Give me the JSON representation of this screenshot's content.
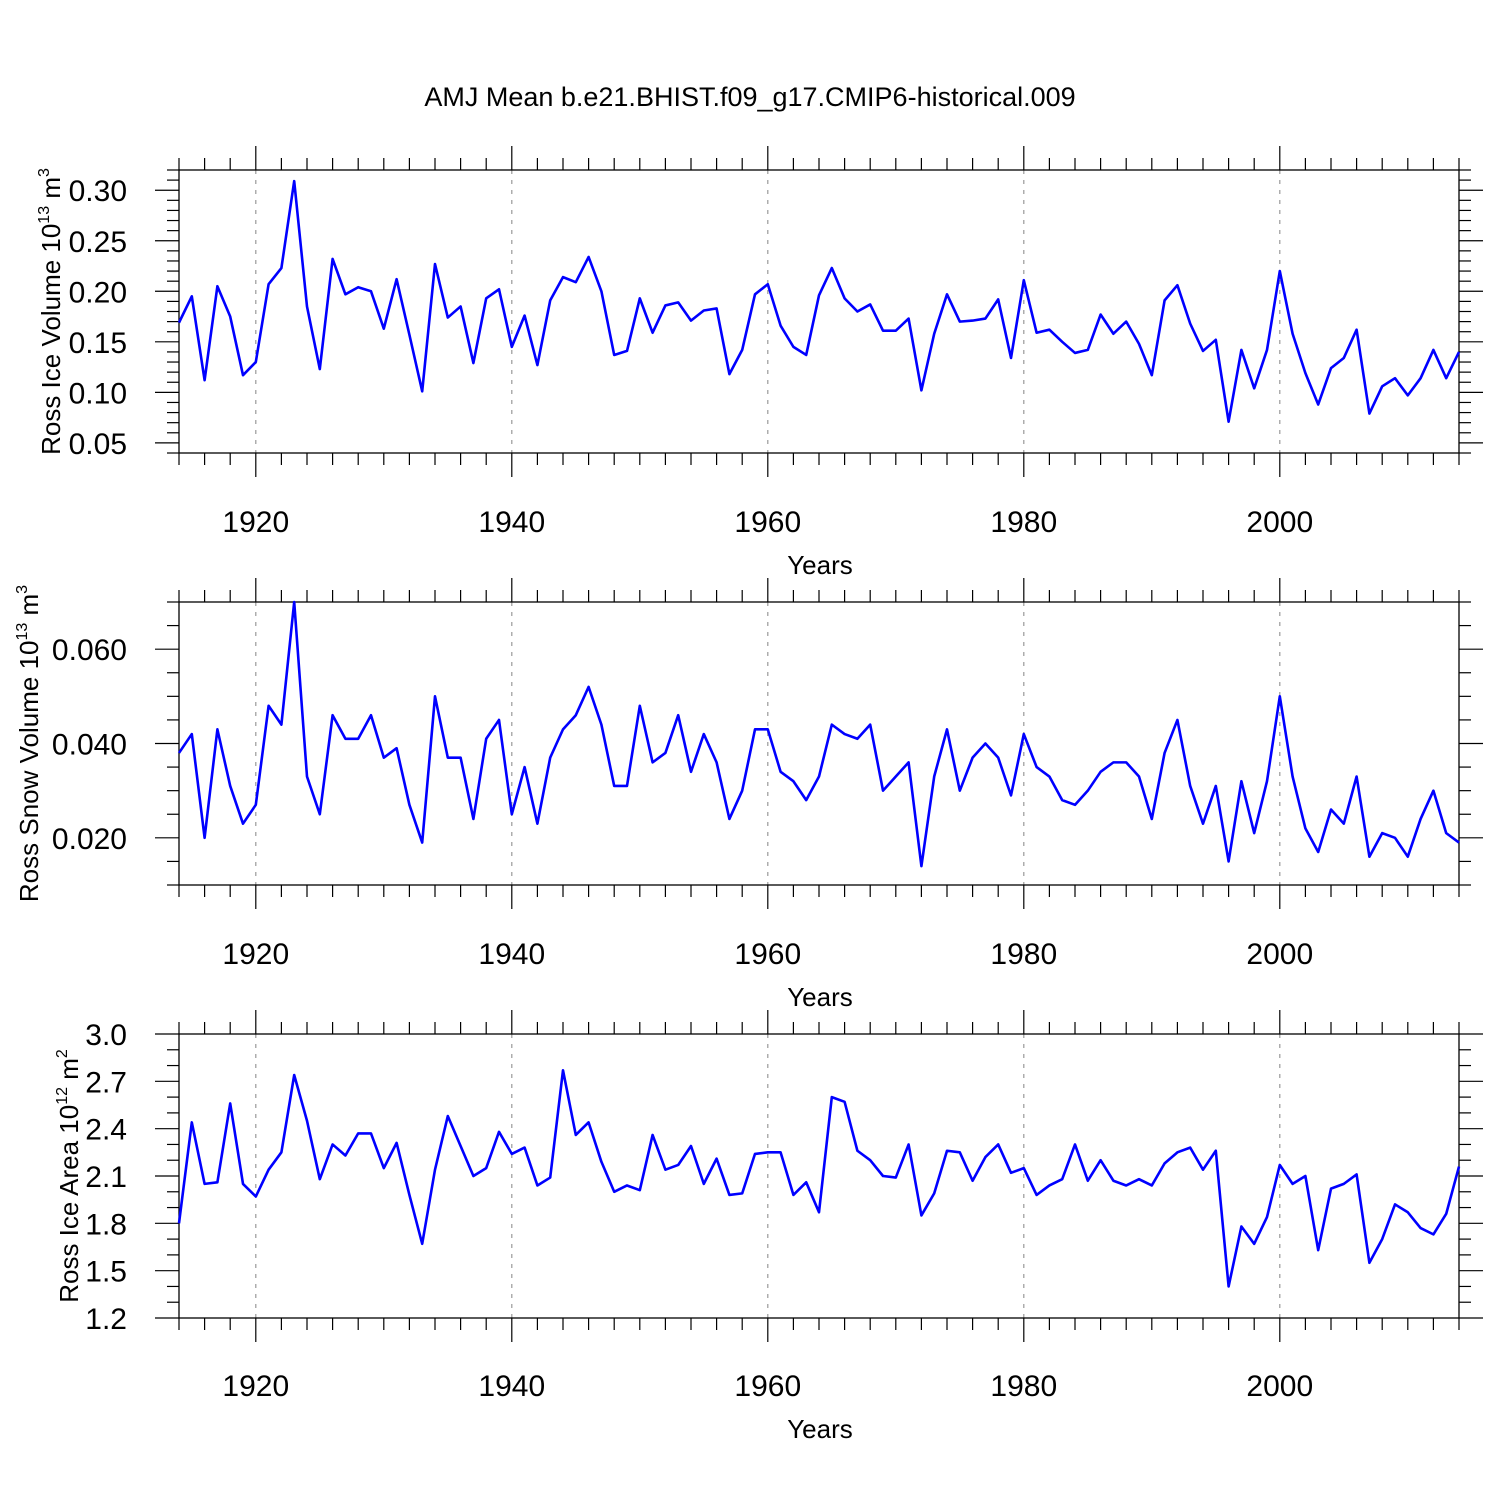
{
  "title": "AMJ Mean b.e21.BHIST.f09_g17.CMIP6-historical.009",
  "colors": {
    "line": "#0000ff",
    "axis": "#000000",
    "grid": "#999999"
  },
  "chart_data": [
    {
      "type": "line",
      "ylabel": "Ross Ice Volume 10",
      "ylabel_sup": "13",
      "ylabel_unit": " m",
      "ylabel_unit_sup": "3",
      "xlabel": "Years",
      "xlim": [
        1914,
        2014
      ],
      "ylim": [
        0.04,
        0.32
      ],
      "yticks": [
        0.05,
        0.1,
        0.15,
        0.2,
        0.25,
        0.3
      ],
      "yticklabels": [
        "0.05",
        "0.10",
        "0.15",
        "0.20",
        "0.25",
        "0.30"
      ],
      "yminor": 0.01,
      "xticks": [
        1920,
        1940,
        1960,
        1980,
        2000
      ],
      "xticklabels": [
        "1920",
        "1940",
        "1960",
        "1980",
        "2000"
      ],
      "x_start": 1914,
      "series": [
        {
          "name": "Ross Ice Volume",
          "values": [
            0.169,
            0.195,
            0.112,
            0.205,
            0.175,
            0.117,
            0.13,
            0.207,
            0.223,
            0.309,
            0.185,
            0.123,
            0.232,
            0.197,
            0.204,
            0.2,
            0.163,
            0.212,
            0.157,
            0.101,
            0.227,
            0.174,
            0.185,
            0.129,
            0.193,
            0.202,
            0.145,
            0.176,
            0.127,
            0.191,
            0.214,
            0.209,
            0.234,
            0.2,
            0.137,
            0.141,
            0.193,
            0.159,
            0.186,
            0.189,
            0.171,
            0.181,
            0.183,
            0.118,
            0.142,
            0.197,
            0.207,
            0.166,
            0.145,
            0.137,
            0.196,
            0.223,
            0.193,
            0.18,
            0.187,
            0.161,
            0.161,
            0.173,
            0.102,
            0.158,
            0.197,
            0.17,
            0.171,
            0.173,
            0.192,
            0.134,
            0.211,
            0.159,
            0.162,
            0.15,
            0.139,
            0.142,
            0.177,
            0.158,
            0.17,
            0.148,
            0.117,
            0.191,
            0.206,
            0.168,
            0.141,
            0.152,
            0.071,
            0.142,
            0.104,
            0.142,
            0.22,
            0.158,
            0.119,
            0.088,
            0.124,
            0.134,
            0.162,
            0.079,
            0.106,
            0.114,
            0.097,
            0.114,
            0.142,
            0.114,
            0.14
          ]
        }
      ]
    },
    {
      "type": "line",
      "ylabel": "Ross Snow Volume 10",
      "ylabel_sup": "13",
      "ylabel_unit": " m",
      "ylabel_unit_sup": "3",
      "xlabel": "Years",
      "xlim": [
        1914,
        2014
      ],
      "ylim": [
        0.01,
        0.07
      ],
      "yticks": [
        0.02,
        0.04,
        0.06
      ],
      "yticklabels": [
        "0.020",
        "0.040",
        "0.060"
      ],
      "yminor": 0.005,
      "xticks": [
        1920,
        1940,
        1960,
        1980,
        2000
      ],
      "xticklabels": [
        "1920",
        "1940",
        "1960",
        "1980",
        "2000"
      ],
      "x_start": 1914,
      "series": [
        {
          "name": "Ross Snow Volume",
          "values": [
            0.038,
            0.042,
            0.02,
            0.043,
            0.031,
            0.023,
            0.027,
            0.048,
            0.044,
            0.07,
            0.033,
            0.025,
            0.046,
            0.041,
            0.041,
            0.046,
            0.037,
            0.039,
            0.027,
            0.019,
            0.05,
            0.037,
            0.037,
            0.024,
            0.041,
            0.045,
            0.025,
            0.035,
            0.023,
            0.037,
            0.043,
            0.046,
            0.052,
            0.044,
            0.031,
            0.031,
            0.048,
            0.036,
            0.038,
            0.046,
            0.034,
            0.042,
            0.036,
            0.024,
            0.03,
            0.043,
            0.043,
            0.034,
            0.032,
            0.028,
            0.033,
            0.044,
            0.042,
            0.041,
            0.044,
            0.03,
            0.033,
            0.036,
            0.014,
            0.033,
            0.043,
            0.03,
            0.037,
            0.04,
            0.037,
            0.029,
            0.042,
            0.035,
            0.033,
            0.028,
            0.027,
            0.03,
            0.034,
            0.036,
            0.036,
            0.033,
            0.024,
            0.038,
            0.045,
            0.031,
            0.023,
            0.031,
            0.015,
            0.032,
            0.021,
            0.032,
            0.05,
            0.033,
            0.022,
            0.017,
            0.026,
            0.023,
            0.033,
            0.016,
            0.021,
            0.02,
            0.016,
            0.024,
            0.03,
            0.021,
            0.019
          ]
        }
      ]
    },
    {
      "type": "line",
      "ylabel": "Ross Ice Area 10",
      "ylabel_sup": "12",
      "ylabel_unit": " m",
      "ylabel_unit_sup": "2",
      "xlabel": "Years",
      "xlim": [
        1914,
        2014
      ],
      "ylim": [
        1.2,
        3.0
      ],
      "yticks": [
        1.2,
        1.5,
        1.8,
        2.1,
        2.4,
        2.7,
        3.0
      ],
      "yticklabels": [
        "1.2",
        "1.5",
        "1.8",
        "2.1",
        "2.4",
        "2.7",
        "3.0"
      ],
      "yminor": 0.1,
      "xticks": [
        1920,
        1940,
        1960,
        1980,
        2000
      ],
      "xticklabels": [
        "1920",
        "1940",
        "1960",
        "1980",
        "2000"
      ],
      "x_start": 1914,
      "series": [
        {
          "name": "Ross Ice Area",
          "values": [
            1.8,
            2.44,
            2.05,
            2.06,
            2.56,
            2.05,
            1.97,
            2.14,
            2.25,
            2.74,
            2.45,
            2.08,
            2.3,
            2.23,
            2.37,
            2.37,
            2.15,
            2.31,
            1.98,
            1.67,
            2.14,
            2.48,
            2.29,
            2.1,
            2.15,
            2.38,
            2.24,
            2.28,
            2.04,
            2.09,
            2.77,
            2.36,
            2.44,
            2.19,
            2.0,
            2.04,
            2.01,
            2.36,
            2.14,
            2.17,
            2.29,
            2.05,
            2.21,
            1.98,
            1.99,
            2.24,
            2.25,
            2.25,
            1.98,
            2.06,
            1.87,
            2.6,
            2.57,
            2.26,
            2.2,
            2.1,
            2.09,
            2.3,
            1.85,
            1.99,
            2.26,
            2.25,
            2.07,
            2.22,
            2.3,
            2.12,
            2.15,
            1.98,
            2.04,
            2.08,
            2.3,
            2.07,
            2.2,
            2.07,
            2.04,
            2.08,
            2.04,
            2.18,
            2.25,
            2.28,
            2.14,
            2.26,
            1.4,
            1.78,
            1.67,
            1.84,
            2.17,
            2.05,
            2.1,
            1.63,
            2.02,
            2.05,
            2.11,
            1.55,
            1.7,
            1.92,
            1.87,
            1.77,
            1.73,
            1.86,
            2.16
          ]
        }
      ]
    }
  ]
}
